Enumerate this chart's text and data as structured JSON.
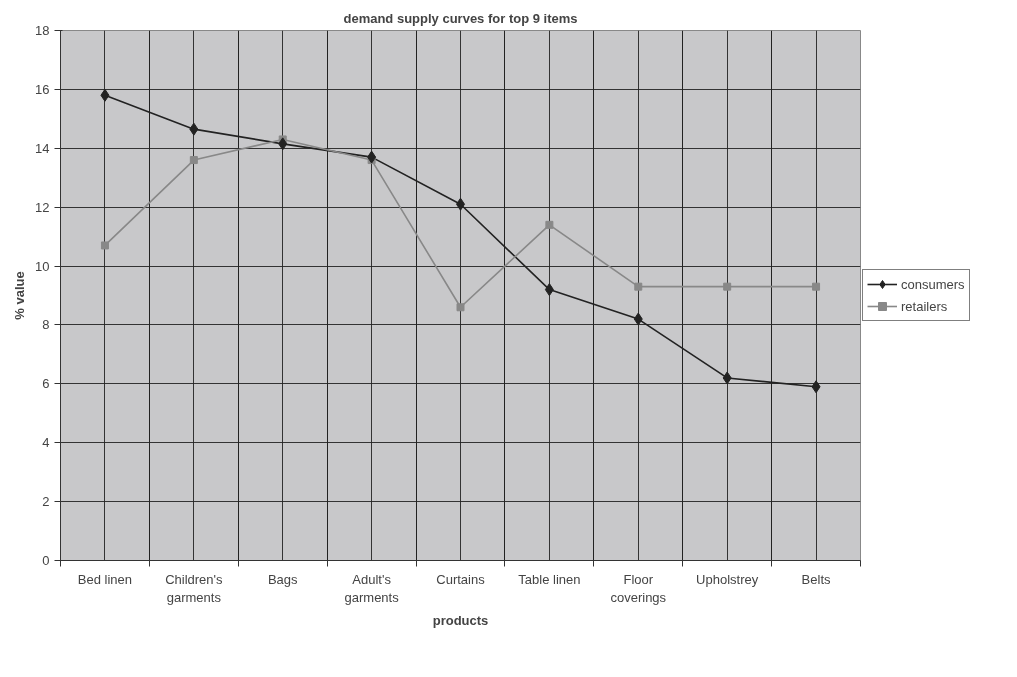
{
  "chart_data": {
    "type": "line",
    "title": "demand supply curves for top 9 items",
    "xlabel": "products",
    "ylabel": "% value",
    "categories": [
      "Bed linen",
      "Children's garments",
      "Bags",
      "Adult's garments",
      "Curtains",
      "Table linen",
      "Floor coverings",
      "Upholstrey",
      "Belts"
    ],
    "series": [
      {
        "name": "consumers",
        "color": "#222222",
        "marker": "diamond",
        "values": [
          15.8,
          14.65,
          14.15,
          13.7,
          12.1,
          9.2,
          8.2,
          6.2,
          5.9
        ]
      },
      {
        "name": "retailers",
        "color": "#888888",
        "marker": "square",
        "values": [
          10.7,
          13.6,
          14.3,
          13.6,
          8.6,
          11.4,
          9.3,
          9.3,
          9.3
        ]
      }
    ],
    "ylim": [
      0,
      18
    ],
    "yticks": [
      0,
      2,
      4,
      6,
      8,
      10,
      12,
      14,
      16,
      18
    ],
    "grid": true,
    "legend": "right",
    "line_style": "solid"
  }
}
